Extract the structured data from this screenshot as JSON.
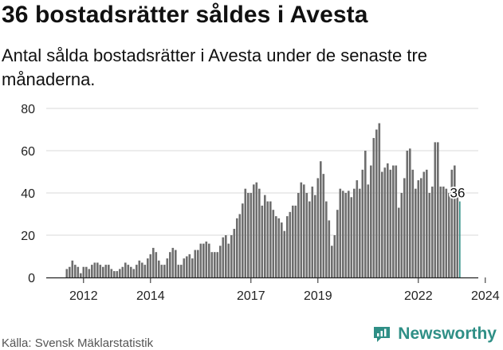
{
  "header": {
    "title": "36 bostadsrätter såldes i Avesta",
    "subtitle": "Antal sålda bostadsrätter i Avesta under de senaste tre månaderna."
  },
  "footer": {
    "source": "Källa: Svensk Mäklarstatistik",
    "brand": "Newsworthy"
  },
  "colors": {
    "bar": "#6e6e6e",
    "highlight": "#2f8f86",
    "grid": "#d9d9d9",
    "axis": "#222222",
    "brand": "#2f8f86"
  },
  "chart_data": {
    "type": "bar",
    "title": "36 bostadsrätter såldes i Avesta",
    "xlabel": "",
    "ylabel": "",
    "ylim": [
      0,
      80
    ],
    "yticks": [
      0,
      20,
      40,
      60,
      80
    ],
    "xticks": [
      "2012",
      "2014",
      "2017",
      "2019",
      "2022",
      "2024"
    ],
    "grid": true,
    "start": "2011-07",
    "interval": "3 months rolling, monthly",
    "highlight_label": "36",
    "values": [
      4,
      5,
      8,
      6,
      5,
      2,
      5,
      5,
      4,
      6,
      7,
      7,
      6,
      5,
      6,
      6,
      4,
      3,
      3,
      4,
      5,
      7,
      6,
      5,
      4,
      6,
      8,
      7,
      6,
      9,
      11,
      14,
      12,
      8,
      6,
      6,
      9,
      12,
      14,
      13,
      6,
      6,
      9,
      10,
      11,
      9,
      13,
      13,
      16,
      16,
      17,
      16,
      12,
      12,
      12,
      15,
      19,
      20,
      16,
      20,
      23,
      28,
      30,
      35,
      42,
      40,
      40,
      44,
      45,
      42,
      34,
      39,
      36,
      36,
      32,
      29,
      28,
      26,
      22,
      29,
      31,
      34,
      34,
      40,
      45,
      44,
      40,
      36,
      43,
      39,
      47,
      55,
      49,
      36,
      27,
      15,
      20,
      32,
      42,
      41,
      40,
      41,
      38,
      42,
      46,
      42,
      51,
      60,
      44,
      53,
      66,
      70,
      73,
      50,
      52,
      54,
      51,
      53,
      53,
      33,
      40,
      47,
      60,
      61,
      51,
      42,
      46,
      47,
      50,
      51,
      40,
      43,
      64,
      64,
      43,
      43,
      42,
      40,
      51,
      53,
      41,
      36
    ]
  }
}
